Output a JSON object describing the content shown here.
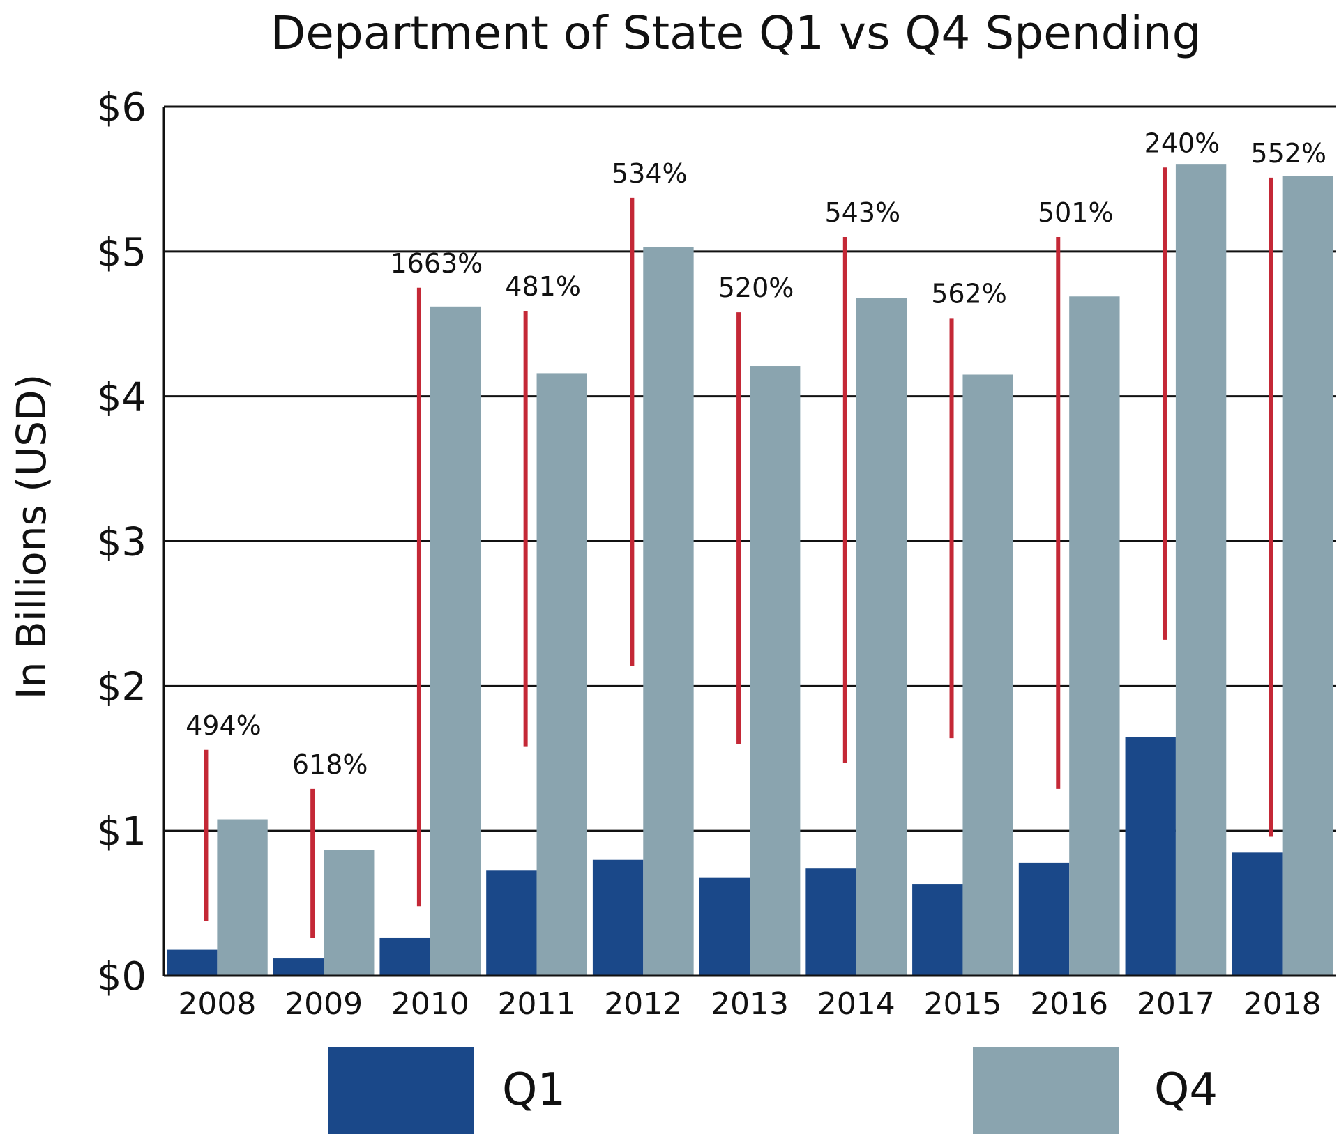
{
  "chart_data": {
    "type": "bar",
    "title": "Department of State Q1 vs Q4 Spending",
    "ylabel": "In Billions (USD)",
    "xlabel": "",
    "ylim": [
      0,
      6
    ],
    "yticks": [
      {
        "value": 0,
        "label": "$0"
      },
      {
        "value": 1,
        "label": "$1"
      },
      {
        "value": 2,
        "label": "$2"
      },
      {
        "value": 3,
        "label": "$3"
      },
      {
        "value": 4,
        "label": "$4"
      },
      {
        "value": 5,
        "label": "$5"
      },
      {
        "value": 6,
        "label": "$6"
      }
    ],
    "categories": [
      "2008",
      "2009",
      "2010",
      "2011",
      "2012",
      "2013",
      "2014",
      "2015",
      "2016",
      "2017",
      "2018"
    ],
    "series": [
      {
        "name": "Q1",
        "color": "#1a4889",
        "values": [
          0.18,
          0.12,
          0.26,
          0.73,
          0.8,
          0.68,
          0.74,
          0.63,
          0.78,
          1.65,
          0.85
        ]
      },
      {
        "name": "Q4",
        "color": "#8aa4af",
        "values": [
          1.08,
          0.87,
          4.62,
          4.16,
          5.03,
          4.21,
          4.68,
          4.15,
          4.69,
          5.6,
          5.52
        ]
      }
    ],
    "annotations": {
      "color": "#c42836",
      "labels": [
        "494%",
        "618%",
        "1663%",
        "481%",
        "534%",
        "520%",
        "543%",
        "562%",
        "501%",
        "240%",
        "552%"
      ],
      "line_ranges": [
        [
          0.38,
          1.56
        ],
        [
          0.26,
          1.29
        ],
        [
          0.48,
          4.75
        ],
        [
          1.58,
          4.59
        ],
        [
          2.14,
          5.37
        ],
        [
          1.6,
          4.58
        ],
        [
          1.47,
          5.1
        ],
        [
          1.64,
          4.54
        ],
        [
          1.29,
          5.1
        ],
        [
          2.32,
          5.58
        ],
        [
          0.96,
          5.51
        ]
      ]
    },
    "grid": true,
    "legend": "bottom"
  }
}
